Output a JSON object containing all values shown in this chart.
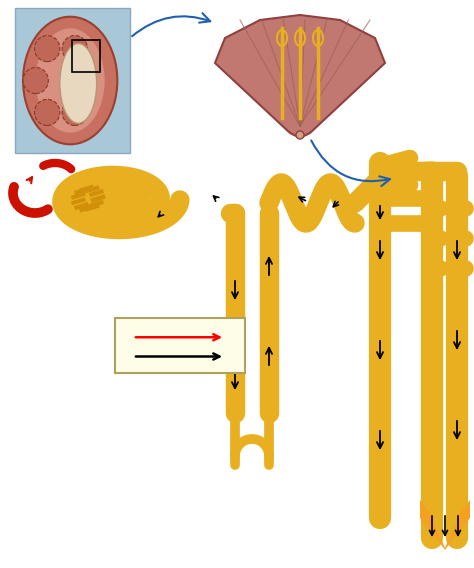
{
  "bg_color": "#ffffff",
  "tubule_color": "#E8B020",
  "tubule_edge": "#C89000",
  "blood_color": "#CC1100",
  "arrow_color": "#2060B0",
  "legend_bg": "#FEFDE8",
  "kidney_bg": "#b0ccd8",
  "kidney_outer": "#c87060",
  "kidney_inner": "#e09080",
  "pyramid_color": "#c07878",
  "pyramid_cap": "#d09888",
  "flare_color": "#F5A020",
  "lw_main": 14,
  "lw_narrow": 7
}
